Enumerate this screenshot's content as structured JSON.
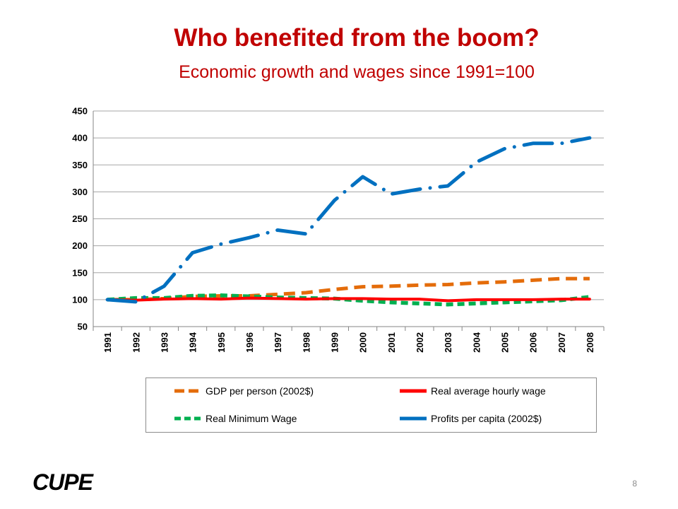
{
  "slide": {
    "title": "Who benefited from the boom?",
    "subtitle": "Economic growth and wages since 1991=100",
    "page_number": "8",
    "logo_text": "CUPE"
  },
  "colors": {
    "title": "#c00000",
    "gdp": "#e46c0a",
    "hourly_wage": "#ff0000",
    "minimum_wage": "#00b050",
    "profits": "#0070c0"
  },
  "chart_data": {
    "type": "line",
    "title": "",
    "xlabel": "",
    "ylabel": "",
    "ylim": [
      50,
      450
    ],
    "yticks": [
      50,
      100,
      150,
      200,
      250,
      300,
      350,
      400,
      450
    ],
    "grid": "horizontal",
    "legend_position": "bottom",
    "categories": [
      "1991",
      "1992",
      "1993",
      "1994",
      "1995",
      "1996",
      "1997",
      "1998",
      "1999",
      "2000",
      "2001",
      "2002",
      "2003",
      "2004",
      "2005",
      "2006",
      "2007",
      "2008"
    ],
    "series": [
      {
        "name": "GDP per person (2002$)",
        "color": "#e46c0a",
        "style": "long-dash",
        "values": [
          100,
          100,
          102,
          106,
          107,
          107,
          110,
          113,
          119,
          124,
          125,
          127,
          128,
          131,
          133,
          136,
          139,
          139
        ]
      },
      {
        "name": "Real average hourly wage",
        "color": "#ff0000",
        "style": "solid",
        "values": [
          100,
          99,
          101,
          102,
          101,
          103,
          102,
          101,
          102,
          102,
          101,
          101,
          98,
          100,
          100,
          100,
          101,
          101
        ]
      },
      {
        "name": "Real Minimum Wage",
        "color": "#00b050",
        "style": "dash",
        "values": [
          100,
          103,
          103,
          107,
          108,
          106,
          104,
          103,
          102,
          98,
          95,
          93,
          91,
          93,
          95,
          97,
          99,
          105
        ]
      },
      {
        "name": "Profits per capita (2002$)",
        "color": "#0070c0",
        "style": "dash-dot",
        "values": [
          100,
          96,
          125,
          187,
          203,
          215,
          229,
          222,
          284,
          328,
          296,
          305,
          311,
          355,
          380,
          390,
          390,
          400
        ]
      }
    ]
  }
}
